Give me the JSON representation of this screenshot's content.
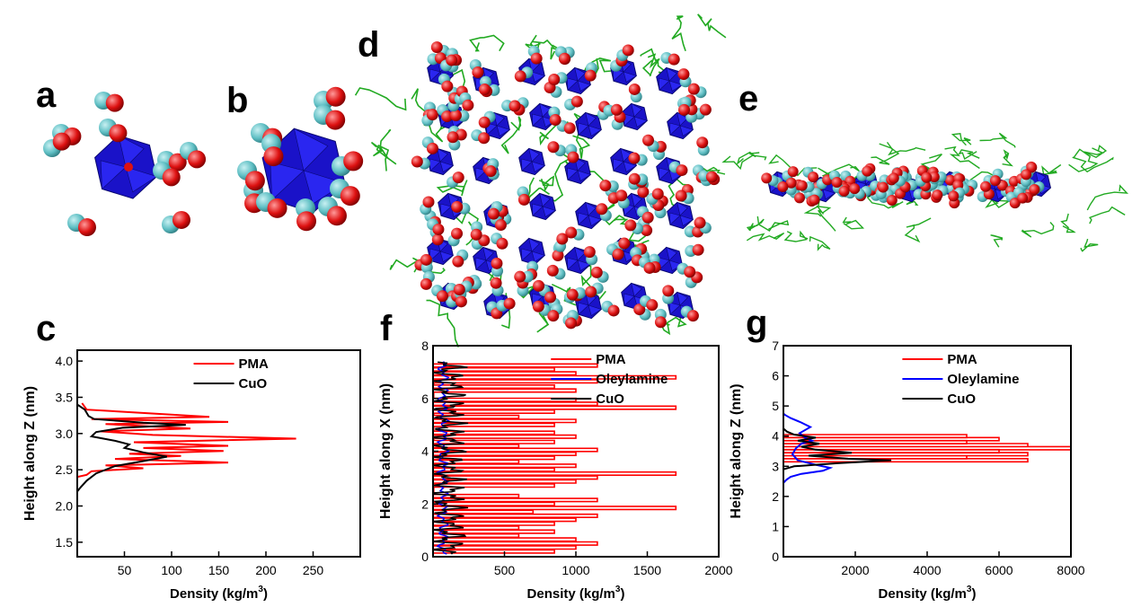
{
  "panel_labels": {
    "a": "a",
    "b": "b",
    "c": "c",
    "d": "d",
    "e": "e",
    "f": "f",
    "g": "g"
  },
  "colors": {
    "pma": "#ff0000",
    "oleylamine": "#0000ff",
    "cuo": "#000000",
    "cu_atom": "#5fbfc4",
    "o_atom": "#dd1111",
    "polyhedra": "#1a12c8",
    "ligand": "#22aa22"
  },
  "chart_data": [
    {
      "id": "c",
      "type": "line",
      "xlabel": "Density (kg/m",
      "xlabel_sup": "3",
      "xlabel_end": ")",
      "ylabel": "Height along Z (nm)",
      "xlim": [
        0,
        300
      ],
      "ylim": [
        1.3,
        4.15
      ],
      "xticks": [
        50,
        100,
        150,
        200,
        250
      ],
      "xtick_labels": [
        "50",
        "100",
        "150",
        "200",
        "250"
      ],
      "yticks": [
        1.5,
        2.0,
        2.5,
        3.0,
        3.5,
        4.0
      ],
      "ytick_labels": [
        "1.5",
        "2.0",
        "2.5",
        "3.0",
        "3.5",
        "4.0"
      ],
      "legend": [
        "PMA",
        "CuO"
      ],
      "series": [
        {
          "name": "PMA",
          "color": "#ff0000",
          "points": [
            [
              5,
              3.42
            ],
            [
              10,
              3.33
            ],
            [
              140,
              3.23
            ],
            [
              15,
              3.2
            ],
            [
              160,
              3.16
            ],
            [
              30,
              3.13
            ],
            [
              120,
              3.07
            ],
            [
              25,
              3.03
            ],
            [
              80,
              2.98
            ],
            [
              232,
              2.93
            ],
            [
              60,
              2.88
            ],
            [
              160,
              2.83
            ],
            [
              70,
              2.8
            ],
            [
              155,
              2.76
            ],
            [
              55,
              2.72
            ],
            [
              110,
              2.69
            ],
            [
              40,
              2.65
            ],
            [
              160,
              2.6
            ],
            [
              30,
              2.56
            ],
            [
              70,
              2.52
            ],
            [
              15,
              2.48
            ],
            [
              10,
              2.43
            ],
            [
              0,
              2.4
            ]
          ]
        },
        {
          "name": "CuO",
          "color": "#000000",
          "points": [
            [
              0,
              3.4
            ],
            [
              8,
              3.33
            ],
            [
              12,
              3.24
            ],
            [
              18,
              3.2
            ],
            [
              70,
              3.15
            ],
            [
              115,
              3.12
            ],
            [
              48,
              3.08
            ],
            [
              20,
              3.02
            ],
            [
              15,
              2.96
            ],
            [
              40,
              2.9
            ],
            [
              55,
              2.85
            ],
            [
              50,
              2.8
            ],
            [
              70,
              2.74
            ],
            [
              95,
              2.68
            ],
            [
              70,
              2.62
            ],
            [
              40,
              2.55
            ],
            [
              20,
              2.45
            ],
            [
              10,
              2.35
            ],
            [
              3,
              2.25
            ],
            [
              0,
              2.2
            ]
          ]
        }
      ]
    },
    {
      "id": "f",
      "type": "line",
      "xlabel": "Density (kg/m",
      "xlabel_sup": "3",
      "xlabel_end": ")",
      "ylabel": "Height along X (nm)",
      "xlim": [
        0,
        2000
      ],
      "ylim": [
        0,
        8
      ],
      "xticks": [
        500,
        1000,
        1500,
        2000
      ],
      "xtick_labels": [
        "500",
        "1000",
        "1500",
        "2000"
      ],
      "yticks": [
        0,
        2,
        4,
        6,
        8
      ],
      "ytick_labels": [
        "0",
        "2",
        "4",
        "6",
        "8"
      ],
      "legend": [
        "PMA",
        "Oleylamine",
        "CuO"
      ],
      "pma_spikes": [
        [
          0.2,
          850
        ],
        [
          0.35,
          1000
        ],
        [
          0.5,
          1150
        ],
        [
          0.65,
          1000
        ],
        [
          0.8,
          600
        ],
        [
          0.95,
          850
        ],
        [
          1.1,
          600
        ],
        [
          1.25,
          850
        ],
        [
          1.4,
          1000
        ],
        [
          1.55,
          1150
        ],
        [
          1.7,
          700
        ],
        [
          1.85,
          1700
        ],
        [
          2.0,
          850
        ],
        [
          2.15,
          1150
        ],
        [
          2.3,
          600
        ],
        [
          2.7,
          850
        ],
        [
          2.85,
          1000
        ],
        [
          3.0,
          1150
        ],
        [
          3.15,
          1700
        ],
        [
          3.3,
          850
        ],
        [
          3.45,
          1000
        ],
        [
          3.6,
          600
        ],
        [
          3.75,
          850
        ],
        [
          3.9,
          1000
        ],
        [
          4.05,
          1150
        ],
        [
          4.2,
          600
        ],
        [
          4.35,
          850
        ],
        [
          4.55,
          1000
        ],
        [
          4.7,
          850
        ],
        [
          5.0,
          850
        ],
        [
          5.15,
          1000
        ],
        [
          5.3,
          600
        ],
        [
          5.5,
          850
        ],
        [
          5.65,
          1700
        ],
        [
          5.8,
          1150
        ],
        [
          5.95,
          1000
        ],
        [
          6.3,
          1000
        ],
        [
          6.45,
          850
        ],
        [
          6.65,
          1150
        ],
        [
          6.8,
          1700
        ],
        [
          6.95,
          1000
        ],
        [
          7.1,
          850
        ],
        [
          7.25,
          1150
        ]
      ],
      "oleylamine": {
        "center": 70,
        "amplitude": 40,
        "y_start": 0.1,
        "y_end": 7.4
      },
      "cuo": {
        "center": 110,
        "amplitude": 170,
        "y_start": 0.1,
        "y_end": 7.4
      }
    },
    {
      "id": "g",
      "type": "line",
      "xlabel": "Density (kg/m",
      "xlabel_sup": "3",
      "xlabel_end": ")",
      "ylabel": "Height along Z (nm)",
      "xlim": [
        0,
        8000
      ],
      "ylim": [
        0,
        7
      ],
      "xticks": [
        2000,
        4000,
        6000,
        8000
      ],
      "xtick_labels": [
        "2000",
        "4000",
        "6000",
        "8000"
      ],
      "yticks": [
        0,
        1,
        2,
        3,
        4,
        5,
        6,
        7
      ],
      "ytick_labels": [
        "0",
        "1",
        "2",
        "3",
        "4",
        "5",
        "6",
        "7"
      ],
      "legend": [
        "PMA",
        "Oleylamine",
        "CuO"
      ],
      "pma_spikes": [
        [
          3.2,
          6800
        ],
        [
          3.3,
          5100
        ],
        [
          3.4,
          6800
        ],
        [
          3.5,
          6000
        ],
        [
          3.6,
          8000
        ],
        [
          3.7,
          6800
        ],
        [
          3.8,
          5100
        ],
        [
          3.9,
          6000
        ],
        [
          4.0,
          5100
        ]
      ],
      "series": [
        {
          "name": "Oleylamine",
          "color": "#0000ff",
          "points": [
            [
              0,
              2.45
            ],
            [
              80,
              2.55
            ],
            [
              200,
              2.65
            ],
            [
              500,
              2.75
            ],
            [
              1100,
              2.85
            ],
            [
              1300,
              2.95
            ],
            [
              900,
              3.05
            ],
            [
              400,
              3.2
            ],
            [
              250,
              3.4
            ],
            [
              350,
              3.6
            ],
            [
              500,
              3.75
            ],
            [
              800,
              3.85
            ],
            [
              600,
              3.95
            ],
            [
              450,
              4.1
            ],
            [
              750,
              4.3
            ],
            [
              500,
              4.45
            ],
            [
              200,
              4.6
            ],
            [
              50,
              4.7
            ],
            [
              0,
              4.75
            ]
          ]
        },
        {
          "name": "CuO",
          "color": "#000000",
          "points": [
            [
              0,
              2.9
            ],
            [
              300,
              3.0
            ],
            [
              1500,
              3.1
            ],
            [
              3000,
              3.2
            ],
            [
              1800,
              3.25
            ],
            [
              700,
              3.35
            ],
            [
              1900,
              3.45
            ],
            [
              900,
              3.55
            ],
            [
              500,
              3.65
            ],
            [
              1000,
              3.75
            ],
            [
              400,
              3.85
            ],
            [
              900,
              3.95
            ],
            [
              300,
              4.05
            ],
            [
              100,
              4.15
            ],
            [
              0,
              4.25
            ]
          ]
        }
      ]
    }
  ]
}
